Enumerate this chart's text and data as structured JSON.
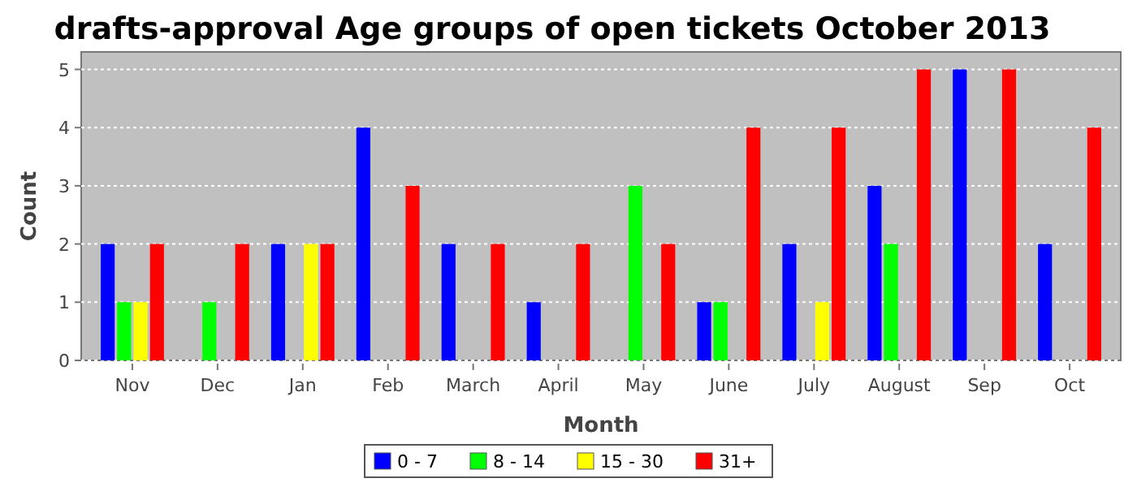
{
  "chart_data": {
    "type": "bar",
    "title": "drafts-approval Age groups of open tickets October 2013",
    "xlabel": "Month",
    "ylabel": "Count",
    "categories": [
      "Nov",
      "Dec",
      "Jan",
      "Feb",
      "March",
      "April",
      "May",
      "June",
      "July",
      "August",
      "Sep",
      "Oct"
    ],
    "series": [
      {
        "name": "0 - 7",
        "color": "#0000ff",
        "values": [
          2,
          null,
          2,
          4,
          2,
          1,
          null,
          1,
          2,
          3,
          5,
          2
        ]
      },
      {
        "name": "8 - 14",
        "color": "#00ff00",
        "values": [
          1,
          1,
          null,
          null,
          null,
          null,
          3,
          1,
          null,
          2,
          null,
          null
        ]
      },
      {
        "name": "15 - 30",
        "color": "#ffff00",
        "values": [
          1,
          null,
          2,
          null,
          null,
          null,
          null,
          null,
          1,
          null,
          null,
          null
        ]
      },
      {
        "name": "31+",
        "color": "#ff0000",
        "values": [
          2,
          2,
          2,
          3,
          2,
          2,
          2,
          4,
          4,
          5,
          5,
          4
        ]
      }
    ],
    "ylim": [
      0,
      5.3
    ],
    "yticks": [
      0,
      1,
      2,
      3,
      4,
      5
    ],
    "grid": "y",
    "legend": "bottom"
  }
}
